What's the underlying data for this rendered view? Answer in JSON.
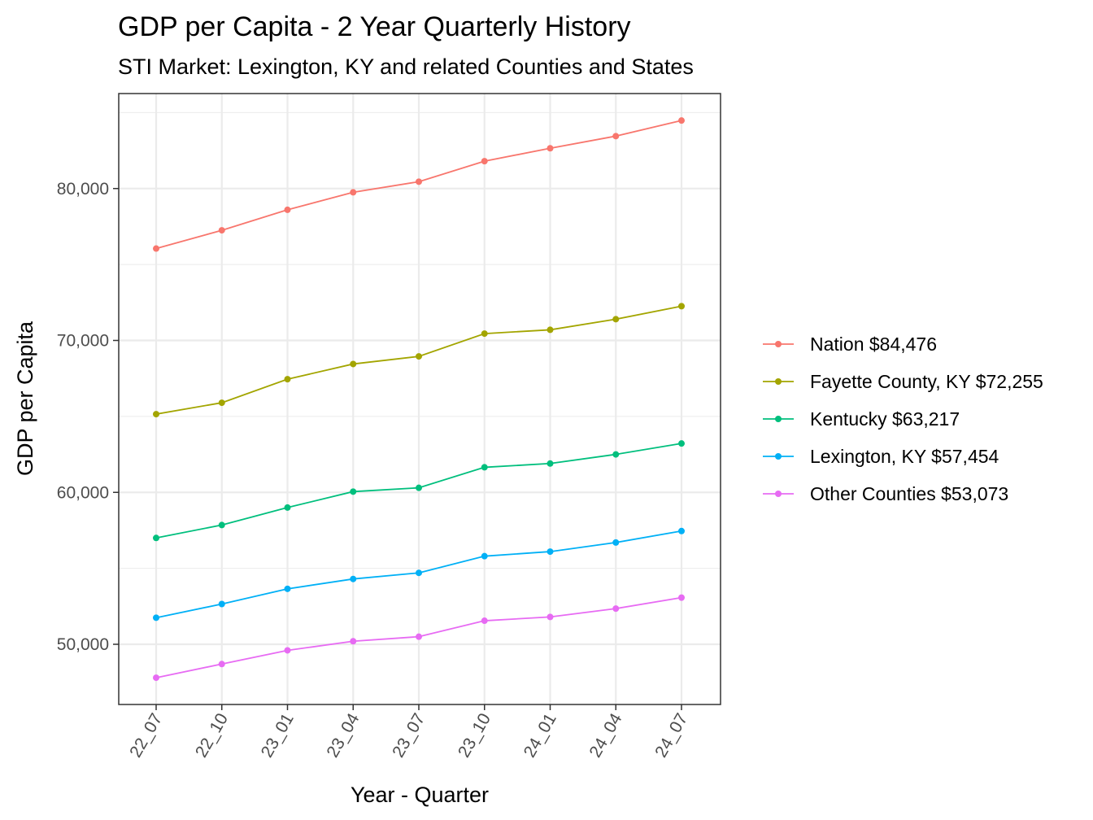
{
  "chart_data": {
    "type": "line",
    "title": "GDP per Capita - 2 Year Quarterly History",
    "subtitle": "STI Market: Lexington, KY and related Counties and States",
    "xlabel": "Year - Quarter",
    "ylabel": "GDP per Capita",
    "categories": [
      "22_07",
      "22_10",
      "23_01",
      "23_04",
      "23_07",
      "23_10",
      "24_01",
      "24_04",
      "24_07"
    ],
    "ylim": [
      46000,
      86000
    ],
    "yticks": [
      50000,
      60000,
      70000,
      80000
    ],
    "ytick_labels": [
      "50,000",
      "60,000",
      "70,000",
      "80,000"
    ],
    "grid": true,
    "legend_position": "right",
    "series": [
      {
        "name": "Nation $84,476",
        "color": "#F8766D",
        "values": [
          76050,
          77250,
          78600,
          79750,
          80450,
          81800,
          82650,
          83450,
          84476
        ]
      },
      {
        "name": "Fayette County, KY $72,255",
        "color": "#A3A500",
        "values": [
          65150,
          65900,
          67450,
          68450,
          68950,
          70450,
          70700,
          71400,
          72255
        ]
      },
      {
        "name": "Kentucky $63,217",
        "color": "#00BF7D",
        "values": [
          57000,
          57850,
          59000,
          60050,
          60300,
          61650,
          61900,
          62500,
          63217
        ]
      },
      {
        "name": "Lexington, KY $57,454",
        "color": "#00B0F6",
        "values": [
          51750,
          52650,
          53650,
          54300,
          54700,
          55800,
          56100,
          56700,
          57454
        ]
      },
      {
        "name": "Other Counties $53,073",
        "color": "#E76BF3",
        "values": [
          47800,
          48700,
          49600,
          50200,
          50500,
          51550,
          51800,
          52350,
          53073
        ]
      }
    ]
  }
}
